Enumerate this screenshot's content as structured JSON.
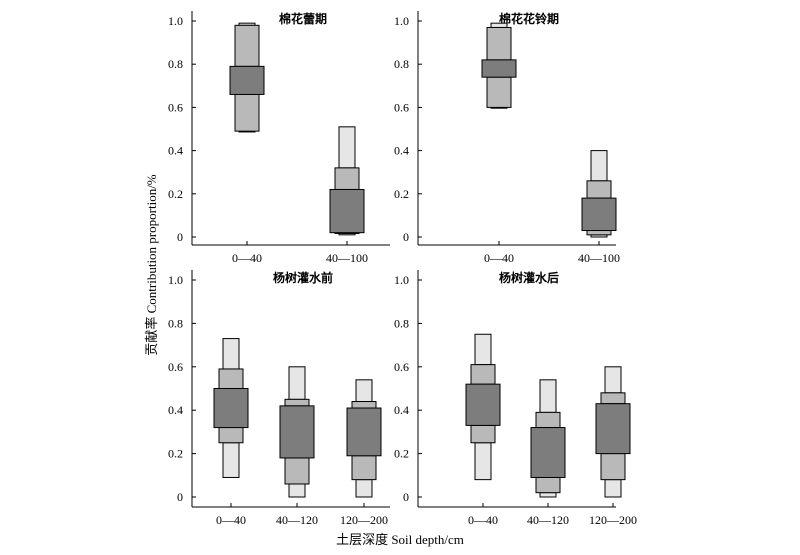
{
  "figure": {
    "ylabel": "贡献率 Contribution proportion/%",
    "xlabel": "土层深度 Soil depth/cm"
  },
  "chart_data": [
    {
      "type": "boxplot",
      "title": "棉花蕾期",
      "ylim": [
        0,
        1.0
      ],
      "yticks": [
        "1.0",
        "0.8",
        "0.6",
        "0.4",
        "0.2",
        "0"
      ],
      "categories": [
        "0—40",
        "40—100"
      ],
      "groups": [
        {
          "min": 0.49,
          "p5": 0.49,
          "p25": 0.66,
          "p75": 0.79,
          "p95": 0.98,
          "max": 0.99
        },
        {
          "min": 0.01,
          "p5": 0.02,
          "p25": 0.02,
          "p75": 0.22,
          "p95": 0.32,
          "max": 0.51
        }
      ]
    },
    {
      "type": "boxplot",
      "title": "棉花花铃期",
      "ylim": [
        0,
        1.0
      ],
      "yticks": [
        "1.0",
        "0.8",
        "0.6",
        "0.4",
        "0.2",
        "0"
      ],
      "categories": [
        "0—40",
        "40—100"
      ],
      "groups": [
        {
          "min": 0.6,
          "p5": 0.6,
          "p25": 0.74,
          "p75": 0.82,
          "p95": 0.97,
          "max": 0.99
        },
        {
          "min": 0.0,
          "p5": 0.01,
          "p25": 0.03,
          "p75": 0.18,
          "p95": 0.26,
          "max": 0.4
        }
      ]
    },
    {
      "type": "boxplot",
      "title": "杨树灌水前",
      "ylim": [
        0,
        1.0
      ],
      "yticks": [
        "1.0",
        "0.8",
        "0.6",
        "0.4",
        "0.2",
        "0"
      ],
      "categories": [
        "0—40",
        "40—120",
        "120—200"
      ],
      "groups": [
        {
          "min": 0.09,
          "p5": 0.25,
          "p25": 0.32,
          "p75": 0.5,
          "p95": 0.59,
          "max": 0.73
        },
        {
          "min": 0.0,
          "p5": 0.06,
          "p25": 0.18,
          "p75": 0.42,
          "p95": 0.45,
          "max": 0.6
        },
        {
          "min": 0.0,
          "p5": 0.08,
          "p25": 0.19,
          "p75": 0.41,
          "p95": 0.44,
          "max": 0.54
        }
      ]
    },
    {
      "type": "boxplot",
      "title": "杨树灌水后",
      "ylim": [
        0,
        1.0
      ],
      "yticks": [
        "1.0",
        "0.8",
        "0.6",
        "0.4",
        "0.2",
        "0"
      ],
      "categories": [
        "0—40",
        "40—120",
        "120—200"
      ],
      "groups": [
        {
          "min": 0.08,
          "p5": 0.25,
          "p25": 0.33,
          "p75": 0.52,
          "p95": 0.61,
          "max": 0.75
        },
        {
          "min": 0.0,
          "p5": 0.02,
          "p25": 0.09,
          "p75": 0.32,
          "p95": 0.39,
          "max": 0.54
        },
        {
          "min": 0.0,
          "p5": 0.08,
          "p25": 0.2,
          "p75": 0.43,
          "p95": 0.48,
          "max": 0.6
        }
      ]
    }
  ]
}
